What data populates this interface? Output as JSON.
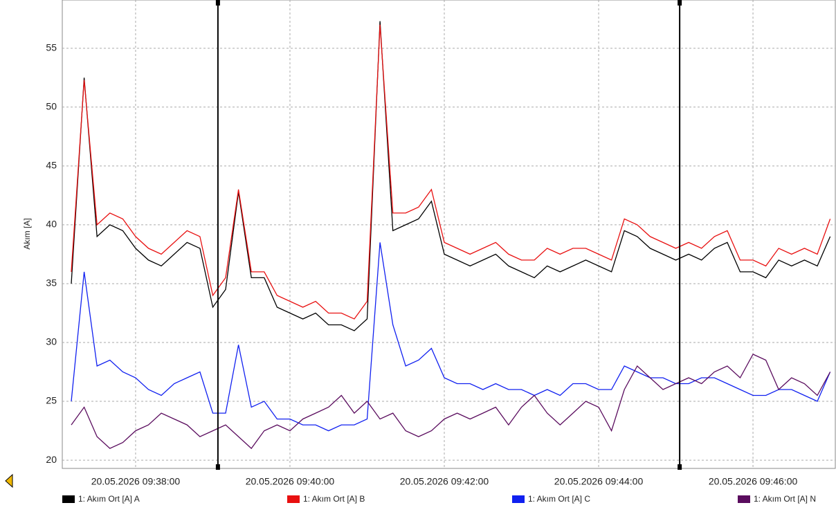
{
  "chart_data": {
    "type": "line",
    "y_label": "Akım [A]",
    "x": [
      "20.05.2026 09:37:10",
      "20.05.2026 09:37:20",
      "20.05.2026 09:37:30",
      "20.05.2026 09:37:40",
      "20.05.2026 09:37:50",
      "20.05.2026 09:38:00",
      "20.05.2026 09:38:10",
      "20.05.2026 09:38:20",
      "20.05.2026 09:38:30",
      "20.05.2026 09:38:40",
      "20.05.2026 09:38:50",
      "20.05.2026 09:39:00",
      "20.05.2026 09:39:10",
      "20.05.2026 09:39:20",
      "20.05.2026 09:39:30",
      "20.05.2026 09:39:40",
      "20.05.2026 09:39:50",
      "20.05.2026 09:40:00",
      "20.05.2026 09:40:10",
      "20.05.2026 09:40:20",
      "20.05.2026 09:40:30",
      "20.05.2026 09:40:40",
      "20.05.2026 09:40:50",
      "20.05.2026 09:41:00",
      "20.05.2026 09:41:10",
      "20.05.2026 09:41:20",
      "20.05.2026 09:41:30",
      "20.05.2026 09:41:40",
      "20.05.2026 09:41:50",
      "20.05.2026 09:42:00",
      "20.05.2026 09:42:10",
      "20.05.2026 09:42:20",
      "20.05.2026 09:42:30",
      "20.05.2026 09:42:40",
      "20.05.2026 09:42:50",
      "20.05.2026 09:43:00",
      "20.05.2026 09:43:10",
      "20.05.2026 09:43:20",
      "20.05.2026 09:43:30",
      "20.05.2026 09:43:40",
      "20.05.2026 09:43:50",
      "20.05.2026 09:44:00",
      "20.05.2026 09:44:10",
      "20.05.2026 09:44:20",
      "20.05.2026 09:44:30",
      "20.05.2026 09:44:40",
      "20.05.2026 09:44:50",
      "20.05.2026 09:45:00",
      "20.05.2026 09:45:10",
      "20.05.2026 09:45:20",
      "20.05.2026 09:45:30",
      "20.05.2026 09:45:40",
      "20.05.2026 09:45:50",
      "20.05.2026 09:46:00",
      "20.05.2026 09:46:10",
      "20.05.2026 09:46:20",
      "20.05.2026 09:46:30",
      "20.05.2026 09:46:40",
      "20.05.2026 09:46:50",
      "20.05.2026 09:47:00"
    ],
    "series": [
      {
        "name": "1: Akım Ort [A] A",
        "color": "#000000",
        "values": [
          35,
          52.5,
          39,
          40,
          39.5,
          38,
          37,
          36.5,
          37.5,
          38.5,
          38,
          33,
          34.5,
          42.8,
          35.5,
          35.5,
          33,
          32.5,
          32,
          32.5,
          31.5,
          31.5,
          31,
          32,
          57.3,
          39.5,
          40,
          40.5,
          42,
          37.5,
          37,
          36.5,
          37,
          37.5,
          36.5,
          36,
          35.5,
          36.5,
          36,
          36.5,
          37,
          36.5,
          36,
          39.5,
          39,
          38,
          37.5,
          37,
          37.5,
          37,
          38,
          38.5,
          36,
          36,
          35.5,
          37,
          36.5,
          37,
          36.5,
          39
        ]
      },
      {
        "name": "1: Akım Ort [A] B",
        "color": "#e81010",
        "values": [
          36,
          52.3,
          40,
          41,
          40.5,
          39,
          38,
          37.5,
          38.5,
          39.5,
          39,
          34,
          35.5,
          43,
          36,
          36,
          34,
          33.5,
          33,
          33.5,
          32.5,
          32.5,
          32,
          33.5,
          57,
          41,
          41,
          41.5,
          43,
          38.5,
          38,
          37.5,
          38,
          38.5,
          37.5,
          37,
          37,
          38,
          37.5,
          38,
          38,
          37.5,
          37,
          40.5,
          40,
          39,
          38.5,
          38,
          38.5,
          38,
          39,
          39.5,
          37,
          37,
          36.5,
          38,
          37.5,
          38,
          37.5,
          40.5
        ]
      },
      {
        "name": "1: Akım Ort [A] C",
        "color": "#1020f0",
        "values": [
          25,
          36,
          28,
          28.5,
          27.5,
          27,
          26,
          25.5,
          26.5,
          27,
          27.5,
          24,
          24,
          29.8,
          24.5,
          25,
          23.5,
          23.5,
          23,
          23,
          22.5,
          23,
          23,
          23.5,
          38.5,
          31.5,
          28,
          28.5,
          29.5,
          27,
          26.5,
          26.5,
          26,
          26.5,
          26,
          26,
          25.5,
          26,
          25.5,
          26.5,
          26.5,
          26,
          26,
          28,
          27.5,
          27,
          27,
          26.5,
          26.5,
          27,
          27,
          26.5,
          26,
          25.5,
          25.5,
          26,
          26,
          25.5,
          25,
          27.5
        ]
      },
      {
        "name": "1: Akım Ort [A] N",
        "color": "#5a0c5e",
        "values": [
          23,
          24.5,
          22,
          21,
          21.5,
          22.5,
          23,
          24,
          23.5,
          23,
          22,
          22.5,
          23,
          22,
          21,
          22.5,
          23,
          22.5,
          23.5,
          24,
          24.5,
          25.5,
          24,
          25,
          23.5,
          24,
          22.5,
          22,
          22.5,
          23.5,
          24,
          23.5,
          24,
          24.5,
          23,
          24.5,
          25.5,
          24,
          23,
          24,
          25,
          24.5,
          22.5,
          26,
          28,
          27,
          26,
          26.5,
          27,
          26.5,
          27.5,
          28,
          27,
          29,
          28.5,
          26,
          27,
          26.5,
          25.5,
          27.5
        ]
      }
    ],
    "xlim": [
      "20.05.2026 09:37:03",
      "20.05.2026 09:47:04"
    ],
    "xticks": [
      "20.05.2026 09:38:00",
      "20.05.2026 09:40:00",
      "20.05.2026 09:42:00",
      "20.05.2026 09:44:00",
      "20.05.2026 09:46:00"
    ],
    "ylim": [
      19.3,
      59.1
    ],
    "yticks": [
      20,
      25,
      30,
      35,
      40,
      45,
      50,
      55
    ],
    "cursors": [
      "20.05.2026 09:39:04",
      "20.05.2026 09:45:03"
    ],
    "grid": true,
    "legend": "bottom"
  }
}
